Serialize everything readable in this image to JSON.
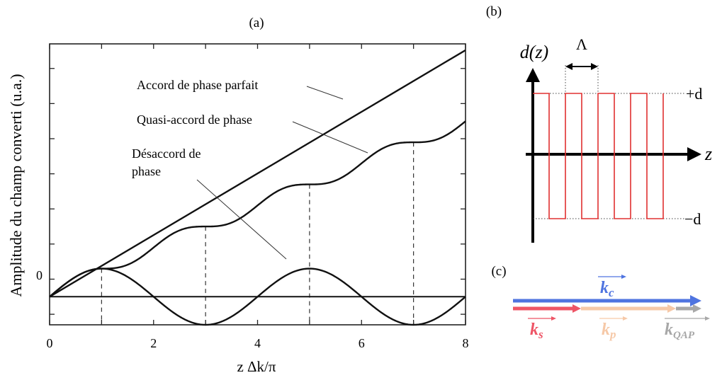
{
  "panel_a": {
    "label": "(a)",
    "xlabel": "z Δk/π",
    "ylabel": "Amplitude du champ converti (u.a.)",
    "zero_label": "0",
    "annotations": [
      "Accord de phase parfait",
      "Quasi-accord de phase",
      "Désaccord de",
      "phase"
    ]
  },
  "panel_b": {
    "label": "(b)",
    "ylabel": "d(z)",
    "xlabel": "z",
    "period_label": "Λ",
    "plus_label": "+d",
    "minus_label": "−d"
  },
  "panel_c": {
    "label": "(c)",
    "kc_main": "k",
    "kc_sub": "c",
    "ks_main": "k",
    "ks_sub": "s",
    "kp_main": "k",
    "kp_sub": "p",
    "kq_main": "k",
    "kq_sub": "QAP",
    "colors": {
      "kc": "#4f74e0",
      "ks": "#ee5566",
      "kp": "#f6c9a8",
      "kq": "#a8a8a8"
    }
  },
  "chart_data": {
    "type": "line",
    "xlim": [
      0,
      8
    ],
    "ylim": [
      -0.8,
      7.2
    ],
    "x_ticks": [
      0,
      2,
      4,
      6,
      8
    ],
    "x_tick_labels": [
      "0",
      "2",
      "4",
      "6",
      "8"
    ],
    "minor_x_ticks": [
      1,
      3,
      5,
      7
    ],
    "dashed_verticals": [
      1,
      3,
      5,
      7
    ],
    "series": [
      {
        "formula": "perfect",
        "x": [
          0,
          8
        ],
        "y": [
          0,
          7.02
        ]
      },
      {
        "formula": "qpm"
      },
      {
        "formula": "mismatch"
      }
    ]
  }
}
